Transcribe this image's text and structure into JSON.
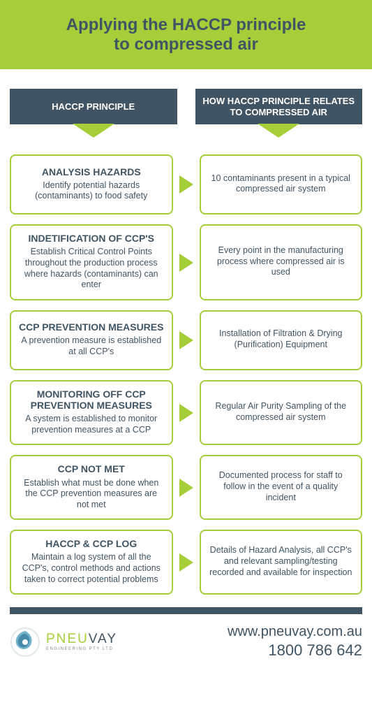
{
  "header": {
    "title_line1": "Applying the HACCP principle",
    "title_line2": "to compressed air",
    "bg_color": "#a6ce39",
    "title_color": "#405464"
  },
  "columns": {
    "left": "HACCP PRINCIPLE",
    "right": "HOW HACCP PRINCIPLE RELATES TO COMPRESSED AIR",
    "bg_color": "#405464",
    "text_color": "#ffffff",
    "arrow_color": "#a6ce39"
  },
  "card_style": {
    "border_color": "#a6ce39",
    "text_color": "#405464",
    "arrow_color": "#a6ce39",
    "border_radius": 8
  },
  "rows": [
    {
      "left_title": "ANALYSIS HAZARDS",
      "left_desc": "Identify potential hazards (contaminants) to food safety",
      "right_desc": "10 contaminants present in a typical compressed air system"
    },
    {
      "left_title": "INDETIFICATION OF CCP'S",
      "left_desc": "Establish Critical Control Points throughout the production process where hazards (contaminants) can enter",
      "right_desc": "Every point in the manufacturing process where compressed air is used"
    },
    {
      "left_title": "CCP PREVENTION MEASURES",
      "left_desc": "A prevention measure is established at all CCP's",
      "right_desc": "Installation of Filtration & Drying (Purification) Equipment"
    },
    {
      "left_title": "MONITORING OFF CCP PREVENTION MEASURES",
      "left_desc": "A system is established to monitor prevention measures at a CCP",
      "right_desc": "Regular Air Purity Sampling of the compressed air system"
    },
    {
      "left_title": "CCP NOT MET",
      "left_desc": "Establish what must be done when the CCP prevention measures are not met",
      "right_desc": "Documented process for staff to follow in the event of a quality incident"
    },
    {
      "left_title": "HACCP & CCP LOG",
      "left_desc": "Maintain a log system of all the CCP's, control methods and actions taken to correct potential problems",
      "right_desc": "Details of Hazard Analysis, all CCP's and relevant sampling/testing recorded and available for inspection"
    }
  ],
  "footer": {
    "bar_color": "#405464",
    "logo_name_light": "PNEU",
    "logo_name_dark": "VAY",
    "logo_sub": "ENGINEERING PTY LTD",
    "url": "www.pneuvay.com.au",
    "phone": "1800 786 642"
  }
}
